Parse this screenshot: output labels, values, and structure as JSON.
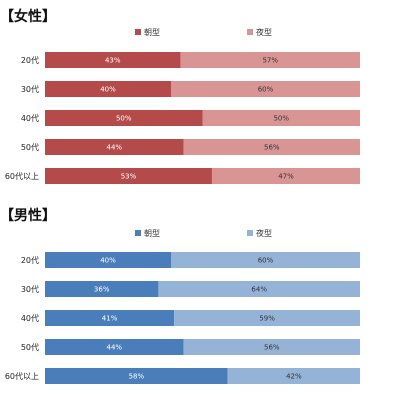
{
  "chart_data": [
    {
      "type": "bar",
      "orientation": "horizontal",
      "stacked": true,
      "title": "【女性】",
      "categories": [
        "20代",
        "30代",
        "40代",
        "50代",
        "60代以上"
      ],
      "series": [
        {
          "name": "朝型",
          "values": [
            43,
            40,
            50,
            44,
            53
          ],
          "labels": [
            "43%",
            "40%",
            "50%",
            "44%",
            "53%"
          ],
          "color": "#b44a4a"
        },
        {
          "name": "夜型",
          "values": [
            57,
            60,
            50,
            56,
            47
          ],
          "labels": [
            "57%",
            "60%",
            "50%",
            "56%",
            "47%"
          ],
          "color": "#d99594"
        }
      ],
      "xlim": [
        0,
        100
      ],
      "grid": false,
      "legend": "top"
    },
    {
      "type": "bar",
      "orientation": "horizontal",
      "stacked": true,
      "title": "【男性】",
      "categories": [
        "20代",
        "30代",
        "40代",
        "50代",
        "60代以上"
      ],
      "series": [
        {
          "name": "朝型",
          "values": [
            40,
            36,
            41,
            44,
            58
          ],
          "labels": [
            "40%",
            "36%",
            "41%",
            "44%",
            "58%"
          ],
          "color": "#4a7ebb"
        },
        {
          "name": "夜型",
          "values": [
            60,
            64,
            59,
            56,
            42
          ],
          "labels": [
            "60%",
            "64%",
            "59%",
            "56%",
            "42%"
          ],
          "color": "#95b3d7"
        }
      ],
      "xlim": [
        0,
        100
      ],
      "grid": false,
      "legend": "top"
    }
  ]
}
